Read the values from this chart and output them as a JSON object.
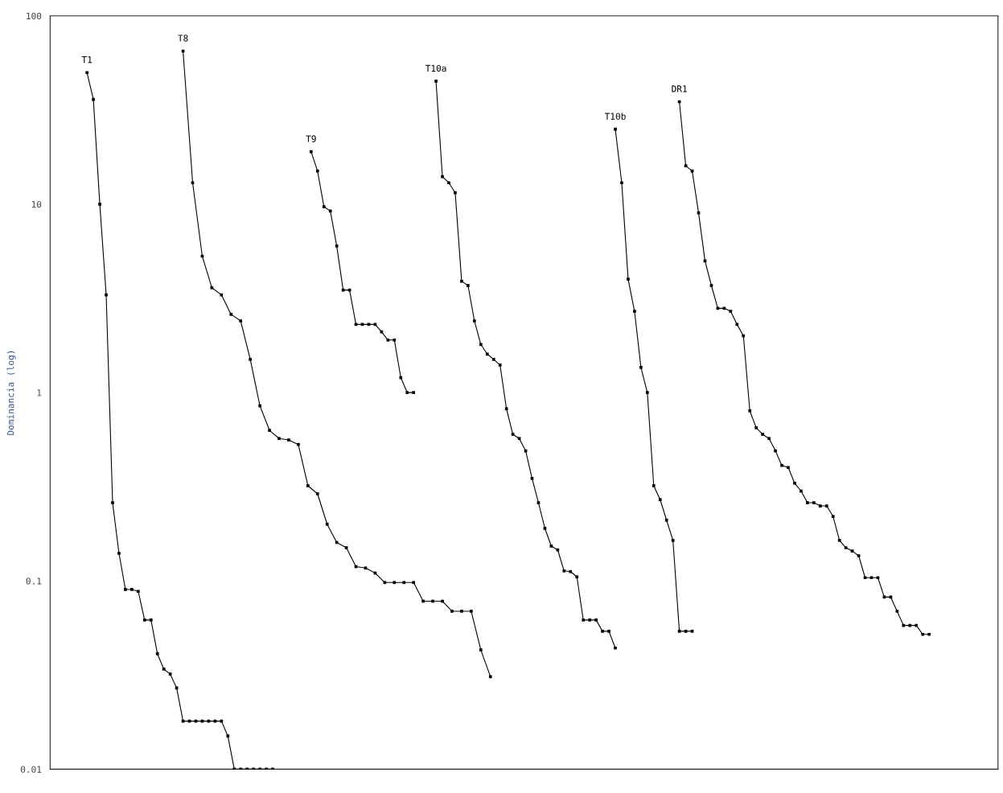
{
  "chart_data": {
    "type": "line",
    "ylabel": "Dominancia (log)",
    "log": "y",
    "ylim": [
      0.01,
      100
    ],
    "yticks": [
      0.01,
      0.1,
      1,
      10,
      100
    ],
    "tick_labels": "y",
    "grid": false,
    "legend": false,
    "marker": "square",
    "line_style": "solid",
    "categories": [
      null,
      null,
      null,
      null,
      null,
      null,
      null,
      null,
      null,
      null,
      null,
      null,
      null,
      null,
      null,
      null,
      null,
      null,
      null,
      null,
      null,
      null,
      null,
      null,
      null,
      null,
      null,
      null,
      null,
      null,
      null,
      null,
      null,
      null,
      null,
      null,
      null,
      null,
      null,
      null,
      null,
      null,
      null,
      null,
      null,
      null,
      null,
      null,
      null,
      null,
      null,
      null,
      null,
      null,
      null,
      null,
      null,
      null,
      null,
      null,
      null,
      null,
      null,
      null,
      null,
      null,
      null,
      null,
      null,
      null,
      null,
      null,
      null,
      null,
      null,
      null,
      null,
      null,
      null,
      null,
      null,
      null,
      null,
      null,
      null,
      null,
      null,
      null,
      null,
      null,
      null,
      null,
      null,
      null,
      null,
      null,
      null,
      null,
      null,
      null,
      null,
      null,
      null,
      null,
      null,
      null,
      null,
      null,
      null,
      null,
      null,
      null,
      null,
      null,
      null,
      null,
      null,
      null,
      null,
      null,
      null,
      null,
      null,
      null,
      null,
      null,
      null,
      null,
      null,
      null,
      null,
      null,
      null,
      null,
      null,
      null,
      null,
      null,
      null,
      null,
      null,
      null,
      null,
      null,
      null,
      null,
      null,
      null,
      null,
      null,
      null,
      null,
      null,
      null,
      null,
      null,
      null,
      null,
      null,
      null,
      null,
      null,
      null,
      null,
      null,
      null,
      null,
      null,
      null,
      null,
      null,
      null,
      null,
      null,
      null,
      null,
      null,
      null,
      null,
      null,
      null,
      null,
      null,
      null,
      null,
      null,
      null,
      null,
      null,
      null,
      null,
      null,
      null,
      null,
      null,
      null,
      null,
      null,
      null,
      null,
      null,
      null,
      null,
      null,
      null,
      null,
      null,
      null,
      null,
      null,
      null,
      null,
      null,
      null,
      null,
      null,
      null,
      null,
      null,
      null,
      null,
      null,
      null,
      null,
      null,
      null,
      null,
      null,
      null,
      null,
      null,
      null,
      null,
      null,
      null,
      null,
      null,
      null,
      null,
      null,
      null,
      null,
      null,
      null,
      null,
      null,
      null,
      null,
      null,
      null,
      null,
      null,
      null,
      null,
      null,
      null,
      null,
      null,
      null,
      null,
      null,
      null,
      null,
      null,
      null,
      null,
      null,
      null,
      null,
      null,
      null,
      null,
      null,
      null,
      null,
      null,
      null,
      null,
      null,
      null,
      null,
      null,
      null,
      null,
      null,
      null,
      null,
      null,
      null,
      null,
      null,
      null,
      null,
      null,
      null,
      null
    ],
    "series": [
      {
        "name": "T1",
        "color": "#000000",
        "values": [
          null,
          null,
          null,
          null,
          null,
          null,
          null,
          null,
          null,
          null,
          null,
          50,
          null,
          36,
          null,
          10,
          null,
          3.3,
          null,
          0.26,
          null,
          0.14,
          null,
          0.09,
          null,
          0.09,
          null,
          0.088,
          null,
          0.062,
          null,
          0.062,
          null,
          0.041,
          null,
          0.034,
          null,
          0.032,
          null,
          0.027,
          null,
          0.018,
          null,
          0.018,
          null,
          0.018,
          null,
          0.018,
          null,
          0.018,
          null,
          0.018,
          null,
          0.018,
          null,
          0.015,
          null,
          0.01,
          null,
          0.01,
          null,
          0.01,
          null,
          0.01,
          null,
          0.01,
          null,
          0.01,
          null,
          0.01,
          null,
          null,
          null,
          null,
          null,
          null,
          null,
          null,
          null,
          null,
          null,
          null,
          null,
          null,
          null,
          null,
          null,
          null,
          null,
          null,
          null,
          null,
          null,
          null,
          null,
          null,
          null,
          null,
          null,
          null,
          null,
          null,
          null,
          null,
          null,
          null,
          null,
          null,
          null,
          null,
          null,
          null,
          null,
          null,
          null,
          null,
          null,
          null,
          null,
          null,
          null,
          null,
          null,
          null,
          null,
          null,
          null,
          null,
          null,
          null,
          null,
          null,
          null,
          null,
          null,
          null,
          null,
          null,
          null,
          null,
          null,
          null,
          null,
          null,
          null,
          null,
          null,
          null,
          null,
          null,
          null,
          null,
          null,
          null,
          null,
          null,
          null,
          null,
          null,
          null,
          null,
          null,
          null,
          null,
          null,
          null,
          null,
          null,
          null,
          null,
          null,
          null,
          null,
          null,
          null,
          null,
          null,
          null,
          null,
          null,
          null,
          null,
          null,
          null,
          null,
          null,
          null,
          null,
          null,
          null,
          null,
          null,
          null,
          null,
          null,
          null,
          null,
          null,
          null,
          null,
          null,
          null,
          null,
          null,
          null,
          null,
          null,
          null,
          null,
          null,
          null,
          null,
          null,
          null,
          null,
          null,
          null,
          null,
          null,
          null,
          null,
          null,
          null,
          null,
          null,
          null,
          null,
          null,
          null,
          null,
          null,
          null,
          null,
          null,
          null,
          null,
          null,
          null,
          null,
          null,
          null,
          null,
          null,
          null,
          null,
          null,
          null,
          null,
          null,
          null,
          null,
          null,
          null,
          null,
          null,
          null,
          null,
          null,
          null,
          null,
          null,
          null,
          null,
          null,
          null,
          null,
          null,
          null,
          null,
          null,
          null,
          null,
          null,
          null,
          null,
          null,
          null,
          null,
          null,
          null,
          null,
          null,
          null,
          null,
          null,
          null,
          null,
          null,
          null,
          null,
          null,
          null,
          null,
          null,
          null,
          null
        ]
      },
      {
        "name": "T8",
        "color": "#000000",
        "values": [
          null,
          null,
          null,
          null,
          null,
          null,
          null,
          null,
          null,
          null,
          null,
          null,
          null,
          null,
          null,
          null,
          null,
          null,
          null,
          null,
          null,
          null,
          null,
          null,
          null,
          null,
          null,
          null,
          null,
          null,
          null,
          null,
          null,
          null,
          null,
          null,
          null,
          null,
          null,
          null,
          null,
          65,
          null,
          null,
          13,
          null,
          null,
          5.3,
          null,
          null,
          3.6,
          null,
          null,
          3.3,
          null,
          null,
          2.6,
          null,
          null,
          2.4,
          null,
          null,
          1.5,
          null,
          null,
          0.85,
          null,
          null,
          0.63,
          null,
          null,
          0.57,
          null,
          null,
          0.56,
          null,
          null,
          0.53,
          null,
          null,
          0.32,
          null,
          null,
          0.29,
          null,
          null,
          0.2,
          null,
          null,
          0.16,
          null,
          null,
          0.15,
          null,
          null,
          0.119,
          null,
          null,
          0.117,
          null,
          null,
          0.11,
          null,
          null,
          0.098,
          null,
          null,
          0.098,
          null,
          null,
          0.098,
          null,
          null,
          0.098,
          null,
          null,
          0.078,
          null,
          null,
          0.078,
          null,
          null,
          0.078,
          null,
          null,
          0.069,
          null,
          null,
          0.069,
          null,
          null,
          0.069,
          null,
          null,
          0.043,
          null,
          null,
          0.031,
          null,
          null,
          null,
          null,
          null,
          null,
          null,
          null,
          null,
          null,
          null,
          null,
          null,
          null,
          null,
          null,
          null,
          null,
          null,
          null,
          null,
          null,
          null,
          null,
          null,
          null,
          null,
          null,
          null,
          null,
          null,
          null,
          null,
          null,
          null,
          null,
          null,
          null,
          null,
          null,
          null,
          null,
          null,
          null,
          null,
          null,
          null,
          null,
          null,
          null,
          null,
          null,
          null,
          null,
          null,
          null,
          null,
          null,
          null,
          null,
          null,
          null,
          null,
          null,
          null,
          null,
          null,
          null,
          null,
          null,
          null,
          null,
          null,
          null,
          null,
          null,
          null,
          null,
          null,
          null,
          null,
          null,
          null,
          null,
          null,
          null,
          null,
          null,
          null,
          null,
          null,
          null,
          null,
          null,
          null,
          null,
          null,
          null,
          null,
          null,
          null,
          null,
          null,
          null,
          null,
          null,
          null,
          null,
          null,
          null,
          null,
          null,
          null,
          null,
          null,
          null,
          null,
          null,
          null,
          null,
          null,
          null,
          null,
          null,
          null,
          null,
          null,
          null,
          null,
          null,
          null,
          null,
          null,
          null,
          null,
          null,
          null,
          null,
          null,
          null,
          null,
          null,
          null,
          null,
          null,
          null,
          null,
          null,
          null,
          null,
          null,
          null,
          null,
          null,
          null,
          null,
          null,
          null
        ]
      },
      {
        "name": "T9",
        "color": "#000000",
        "values": [
          null,
          null,
          null,
          null,
          null,
          null,
          null,
          null,
          null,
          null,
          null,
          null,
          null,
          null,
          null,
          null,
          null,
          null,
          null,
          null,
          null,
          null,
          null,
          null,
          null,
          null,
          null,
          null,
          null,
          null,
          null,
          null,
          null,
          null,
          null,
          null,
          null,
          null,
          null,
          null,
          null,
          null,
          null,
          null,
          null,
          null,
          null,
          null,
          null,
          null,
          null,
          null,
          null,
          null,
          null,
          null,
          null,
          null,
          null,
          null,
          null,
          null,
          null,
          null,
          null,
          null,
          null,
          null,
          null,
          null,
          null,
          null,
          null,
          null,
          null,
          null,
          null,
          null,
          null,
          null,
          null,
          19,
          null,
          15,
          null,
          9.7,
          null,
          9.2,
          null,
          6.0,
          null,
          3.5,
          null,
          3.5,
          null,
          2.3,
          null,
          2.3,
          null,
          2.3,
          null,
          2.3,
          null,
          2.1,
          null,
          1.9,
          null,
          1.9,
          null,
          1.2,
          null,
          1.0,
          null,
          1.0,
          null,
          null,
          null,
          null,
          null,
          null,
          null,
          null,
          null,
          null,
          null,
          null,
          null,
          null,
          null,
          null,
          null,
          null,
          null,
          null,
          null,
          null,
          null,
          null,
          null,
          null,
          null,
          null,
          null,
          null,
          null,
          null,
          null,
          null,
          null,
          null,
          null,
          null,
          null,
          null,
          null,
          null,
          null,
          null,
          null,
          null,
          null,
          null,
          null,
          null,
          null,
          null,
          null,
          null,
          null,
          null,
          null,
          null,
          null,
          null,
          null,
          null,
          null,
          null,
          null,
          null,
          null,
          null,
          null,
          null,
          null,
          null,
          null,
          null,
          null,
          null,
          null,
          null,
          null,
          null,
          null,
          null,
          null,
          null,
          null,
          null,
          null,
          null,
          null,
          null,
          null,
          null,
          null,
          null,
          null,
          null,
          null,
          null,
          null,
          null,
          null,
          null,
          null,
          null,
          null,
          null,
          null,
          null,
          null,
          null,
          null,
          null,
          null,
          null,
          null,
          null,
          null,
          null,
          null,
          null,
          null,
          null,
          null,
          null,
          null,
          null,
          null,
          null,
          null,
          null,
          null,
          null,
          null,
          null,
          null,
          null,
          null,
          null,
          null,
          null,
          null,
          null,
          null,
          null,
          null,
          null,
          null,
          null,
          null,
          null,
          null,
          null,
          null,
          null,
          null,
          null,
          null,
          null,
          null,
          null,
          null,
          null,
          null,
          null,
          null,
          null,
          null,
          null,
          null,
          null,
          null,
          null,
          null,
          null,
          null,
          null,
          null,
          null,
          null,
          null,
          null,
          null
        ]
      },
      {
        "name": "T10a",
        "color": "#000000",
        "values": [
          null,
          null,
          null,
          null,
          null,
          null,
          null,
          null,
          null,
          null,
          null,
          null,
          null,
          null,
          null,
          null,
          null,
          null,
          null,
          null,
          null,
          null,
          null,
          null,
          null,
          null,
          null,
          null,
          null,
          null,
          null,
          null,
          null,
          null,
          null,
          null,
          null,
          null,
          null,
          null,
          null,
          null,
          null,
          null,
          null,
          null,
          null,
          null,
          null,
          null,
          null,
          null,
          null,
          null,
          null,
          null,
          null,
          null,
          null,
          null,
          null,
          null,
          null,
          null,
          null,
          null,
          null,
          null,
          null,
          null,
          null,
          null,
          null,
          null,
          null,
          null,
          null,
          null,
          null,
          null,
          null,
          null,
          null,
          null,
          null,
          null,
          null,
          null,
          null,
          null,
          null,
          null,
          null,
          null,
          null,
          null,
          null,
          null,
          null,
          null,
          null,
          null,
          null,
          null,
          null,
          null,
          null,
          null,
          null,
          null,
          null,
          null,
          null,
          null,
          null,
          null,
          null,
          null,
          null,
          null,
          45,
          null,
          14,
          null,
          13,
          null,
          11.5,
          null,
          3.9,
          null,
          3.7,
          null,
          2.4,
          null,
          1.8,
          null,
          1.6,
          null,
          1.5,
          null,
          1.4,
          null,
          0.82,
          null,
          0.6,
          null,
          0.57,
          null,
          0.49,
          null,
          0.35,
          null,
          0.26,
          null,
          0.19,
          null,
          0.153,
          null,
          0.146,
          null,
          0.113,
          null,
          0.112,
          null,
          0.105,
          null,
          0.062,
          null,
          0.062,
          null,
          0.062,
          null,
          0.054,
          null,
          0.054,
          null,
          0.044,
          null,
          null,
          null,
          null,
          null,
          null,
          null,
          null,
          null,
          null,
          null,
          null,
          null,
          null,
          null,
          null,
          null,
          null,
          null,
          null,
          null,
          null,
          null,
          null,
          null,
          null,
          null,
          null,
          null,
          null,
          null,
          null,
          null,
          null,
          null,
          null,
          null,
          null,
          null,
          null,
          null,
          null,
          null,
          null,
          null,
          null,
          null,
          null,
          null,
          null,
          null,
          null,
          null,
          null,
          null,
          null,
          null,
          null,
          null,
          null,
          null,
          null,
          null,
          null,
          null,
          null,
          null,
          null,
          null,
          null,
          null,
          null,
          null,
          null,
          null,
          null,
          null,
          null,
          null,
          null,
          null,
          null,
          null,
          null,
          null,
          null,
          null,
          null,
          null,
          null,
          null,
          null,
          null,
          null,
          null,
          null,
          null,
          null,
          null,
          null,
          null,
          null,
          null,
          null,
          null,
          null,
          null,
          null,
          null,
          null,
          null,
          null,
          null,
          null,
          null,
          null,
          null,
          null,
          null
        ]
      },
      {
        "name": "T10b",
        "color": "#000000",
        "values": [
          null,
          null,
          null,
          null,
          null,
          null,
          null,
          null,
          null,
          null,
          null,
          null,
          null,
          null,
          null,
          null,
          null,
          null,
          null,
          null,
          null,
          null,
          null,
          null,
          null,
          null,
          null,
          null,
          null,
          null,
          null,
          null,
          null,
          null,
          null,
          null,
          null,
          null,
          null,
          null,
          null,
          null,
          null,
          null,
          null,
          null,
          null,
          null,
          null,
          null,
          null,
          null,
          null,
          null,
          null,
          null,
          null,
          null,
          null,
          null,
          null,
          null,
          null,
          null,
          null,
          null,
          null,
          null,
          null,
          null,
          null,
          null,
          null,
          null,
          null,
          null,
          null,
          null,
          null,
          null,
          null,
          null,
          null,
          null,
          null,
          null,
          null,
          null,
          null,
          null,
          null,
          null,
          null,
          null,
          null,
          null,
          null,
          null,
          null,
          null,
          null,
          null,
          null,
          null,
          null,
          null,
          null,
          null,
          null,
          null,
          null,
          null,
          null,
          null,
          null,
          null,
          null,
          null,
          null,
          null,
          null,
          null,
          null,
          null,
          null,
          null,
          null,
          null,
          null,
          null,
          null,
          null,
          null,
          null,
          null,
          null,
          null,
          null,
          null,
          null,
          null,
          null,
          null,
          null,
          null,
          null,
          null,
          null,
          null,
          null,
          null,
          null,
          null,
          null,
          null,
          null,
          null,
          null,
          null,
          null,
          null,
          null,
          null,
          null,
          null,
          null,
          null,
          null,
          null,
          null,
          null,
          null,
          null,
          null,
          null,
          null,
          25,
          null,
          13,
          null,
          4.0,
          null,
          2.7,
          null,
          1.36,
          null,
          1.0,
          null,
          0.32,
          null,
          0.27,
          null,
          0.21,
          null,
          0.164,
          null,
          0.054,
          null,
          0.054,
          null,
          0.054,
          null,
          null,
          null,
          null,
          null,
          null,
          null,
          null,
          null,
          null,
          null,
          null,
          null,
          null,
          null,
          null,
          null,
          null,
          null,
          null,
          null,
          null,
          null,
          null,
          null,
          null,
          null,
          null,
          null,
          null,
          null,
          null,
          null,
          null,
          null,
          null,
          null,
          null,
          null,
          null,
          null,
          null,
          null,
          null,
          null,
          null,
          null,
          null,
          null,
          null,
          null,
          null,
          null,
          null,
          null,
          null,
          null,
          null,
          null,
          null,
          null,
          null,
          null,
          null,
          null,
          null,
          null,
          null,
          null,
          null,
          null,
          null,
          null,
          null,
          null,
          null,
          null,
          null,
          null,
          null,
          null,
          null,
          null,
          null,
          null,
          null,
          null,
          null,
          null,
          null,
          null,
          null,
          null,
          null,
          null
        ]
      },
      {
        "name": "DR1",
        "color": "#000000",
        "values": [
          null,
          null,
          null,
          null,
          null,
          null,
          null,
          null,
          null,
          null,
          null,
          null,
          null,
          null,
          null,
          null,
          null,
          null,
          null,
          null,
          null,
          null,
          null,
          null,
          null,
          null,
          null,
          null,
          null,
          null,
          null,
          null,
          null,
          null,
          null,
          null,
          null,
          null,
          null,
          null,
          null,
          null,
          null,
          null,
          null,
          null,
          null,
          null,
          null,
          null,
          null,
          null,
          null,
          null,
          null,
          null,
          null,
          null,
          null,
          null,
          null,
          null,
          null,
          null,
          null,
          null,
          null,
          null,
          null,
          null,
          null,
          null,
          null,
          null,
          null,
          null,
          null,
          null,
          null,
          null,
          null,
          null,
          null,
          null,
          null,
          null,
          null,
          null,
          null,
          null,
          null,
          null,
          null,
          null,
          null,
          null,
          null,
          null,
          null,
          null,
          null,
          null,
          null,
          null,
          null,
          null,
          null,
          null,
          null,
          null,
          null,
          null,
          null,
          null,
          null,
          null,
          null,
          null,
          null,
          null,
          null,
          null,
          null,
          null,
          null,
          null,
          null,
          null,
          null,
          null,
          null,
          null,
          null,
          null,
          null,
          null,
          null,
          null,
          null,
          null,
          null,
          null,
          null,
          null,
          null,
          null,
          null,
          null,
          null,
          null,
          null,
          null,
          null,
          null,
          null,
          null,
          null,
          null,
          null,
          null,
          null,
          null,
          null,
          null,
          null,
          null,
          null,
          null,
          null,
          null,
          null,
          null,
          null,
          null,
          null,
          null,
          null,
          null,
          null,
          null,
          null,
          null,
          null,
          null,
          null,
          null,
          null,
          null,
          null,
          null,
          null,
          null,
          null,
          null,
          null,
          null,
          35,
          null,
          16,
          null,
          15,
          null,
          9.0,
          null,
          5.0,
          null,
          3.7,
          null,
          2.8,
          null,
          2.8,
          null,
          2.7,
          null,
          2.3,
          null,
          2.0,
          null,
          0.8,
          null,
          0.65,
          null,
          0.6,
          null,
          0.57,
          null,
          0.49,
          null,
          0.41,
          null,
          0.4,
          null,
          0.33,
          null,
          0.3,
          null,
          0.26,
          null,
          0.26,
          null,
          0.25,
          null,
          0.25,
          null,
          0.22,
          null,
          0.164,
          null,
          0.15,
          null,
          0.144,
          null,
          0.136,
          null,
          0.104,
          null,
          0.104,
          null,
          0.104,
          null,
          0.082,
          null,
          0.082,
          null,
          0.069,
          null,
          0.058,
          null,
          0.058,
          null,
          0.058,
          null,
          0.052,
          null,
          0.052,
          null,
          null,
          null,
          null,
          null,
          null,
          null,
          null,
          null,
          null,
          null,
          null,
          null,
          null,
          null,
          null,
          null,
          null,
          null,
          null,
          null
        ]
      }
    ]
  }
}
